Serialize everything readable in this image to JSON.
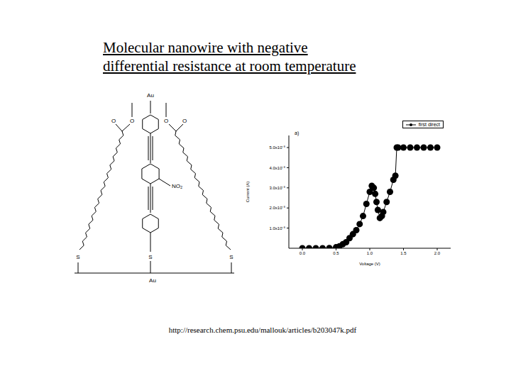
{
  "title": [
    "Molecular nanowire with negative",
    "differential resistance at room temperature"
  ],
  "molecule": {
    "top_label": "Au",
    "bottom_label": "Au",
    "group_label": "NO₂",
    "oxygen_labels": [
      "O",
      "O",
      "O",
      "O"
    ],
    "sulfur_labels": [
      "S",
      "S",
      "S"
    ]
  },
  "url": "http://research.chem.psu.edu/mallouk/articles/b203047k.pdf",
  "chart_data": {
    "type": "scatter",
    "annotation": "a)",
    "x_label": "Voltage (V)",
    "y_label": "Current (A)",
    "xlim": [
      -0.2,
      2.2
    ],
    "ylim": [
      0,
      5.6e-08
    ],
    "xticks": [
      {
        "value": 0,
        "label": "0.0"
      },
      0.5,
      {
        "value": 1,
        "label": "1.0"
      },
      1.5,
      {
        "value": 2,
        "label": "2.0"
      }
    ],
    "yticks": [
      {
        "value": 1e-08,
        "label": "1.0x10⁻⁸"
      },
      {
        "value": 2e-08,
        "label": "2.0x10⁻⁸"
      },
      {
        "value": 3e-08,
        "label": "3.0x10⁻⁸"
      },
      {
        "value": 4e-08,
        "label": "4.0x10⁻⁸"
      },
      {
        "value": 5e-08,
        "label": "5.0x10⁻⁸"
      }
    ],
    "legend": "upper right",
    "series": [
      {
        "name": "first direct",
        "color": "#000000",
        "marker": "circle",
        "line_style": "solid",
        "x": [
          0.0,
          0.1,
          0.2,
          0.3,
          0.4,
          0.5,
          0.55,
          0.6,
          0.65,
          0.7,
          0.75,
          0.8,
          0.85,
          0.9,
          0.95,
          1.0,
          1.03,
          1.06,
          1.08,
          1.1,
          1.12,
          1.15,
          1.18,
          1.2,
          1.25,
          1.3,
          1.35,
          1.38,
          1.4,
          1.42,
          1.5,
          1.6,
          1.7,
          1.8,
          1.9,
          2.0
        ],
        "values": [
          0,
          0,
          0,
          0,
          1e-10,
          5e-10,
          1e-09,
          2e-09,
          3e-09,
          5e-09,
          7e-09,
          9e-09,
          1.2e-08,
          1.6e-08,
          2.2e-08,
          2.8e-08,
          3.1e-08,
          3e-08,
          2.7e-08,
          2.3e-08,
          1.9e-08,
          1.5e-08,
          1.6e-08,
          1.8e-08,
          2.3e-08,
          2.8e-08,
          3.4e-08,
          3.6e-08,
          5e-08,
          5e-08,
          5e-08,
          5e-08,
          5e-08,
          5e-08,
          5e-08,
          5e-08
        ]
      }
    ]
  }
}
